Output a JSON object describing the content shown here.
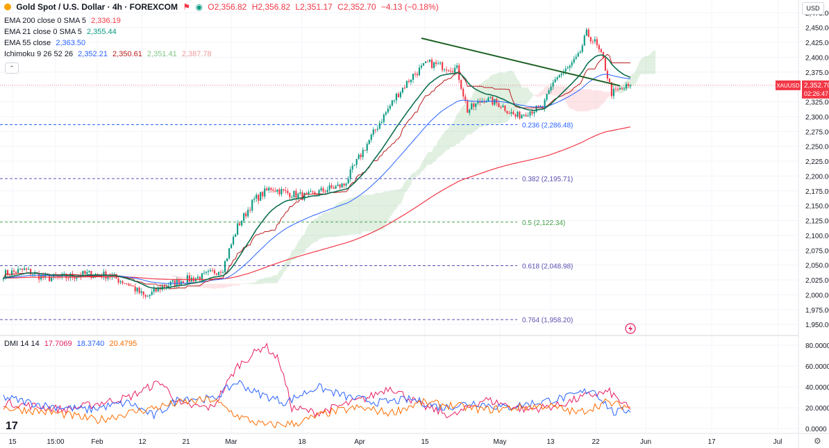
{
  "header": {
    "symbol_title": "Gold Spot / U.S. Dollar · 4h · FOREXCOM",
    "open": "O2,356.82",
    "high": "H2,356.82",
    "low": "L2,351.17",
    "close": "C2,352.70",
    "change": "−4.13 (−0.18%)",
    "currency": "USD"
  },
  "indicators": [
    {
      "label": "EMA 200 close 0 SMA 5",
      "values": [
        "2,336.19"
      ],
      "colors": [
        "#f23645"
      ]
    },
    {
      "label": "EMA 21 close 0 SMA 5",
      "values": [
        "2,355.44"
      ],
      "colors": [
        "#089981"
      ]
    },
    {
      "label": "EMA 55 close",
      "values": [
        "2,363.50"
      ],
      "colors": [
        "#2962ff"
      ]
    },
    {
      "label": "Ichimoku 9 26 52 26",
      "values": [
        "2,352.21",
        "2,350.61",
        "2,351.41",
        "2,387.78"
      ],
      "colors": [
        "#2962ff",
        "#b71c1c",
        "#43a047",
        "#f23645"
      ]
    }
  ],
  "dmi": {
    "label": "DMI 14 14",
    "values": [
      "17.7069",
      "18.3740",
      "20.4795"
    ],
    "colors": [
      "#e91e63",
      "#2962ff",
      "#ff6d00"
    ]
  },
  "price_tag": {
    "symbol": "XAUUSD",
    "price": "2,352.70",
    "countdown": "02:26:47"
  },
  "colors": {
    "up": "#089981",
    "down": "#f23645",
    "ema200": "#f23645",
    "ema21": "#089981",
    "ema55": "#2962ff",
    "trendline": "#1b5e20",
    "fib": "#5b4fb0",
    "fib_mid": "#43a047",
    "baseline": "#b71c1c",
    "conversion": "#2962ff"
  },
  "chart_data": [
    {
      "type": "candlestick",
      "title": "Gold Spot / U.S. Dollar · 4h · FOREXCOM",
      "xlabel": "",
      "ylabel": "",
      "ylim": [
        1935,
        2487
      ],
      "x_ticks": [
        "15",
        "15:00",
        "Feb",
        "12",
        "21",
        "Mar",
        "18",
        "Apr",
        "15",
        "May",
        "13",
        "22",
        "Jun",
        "17",
        "Jul"
      ],
      "y_ticks": [
        "2,475.00",
        "2,450.00",
        "2,425.00",
        "2,400.00",
        "2,375.00",
        "2,350.00",
        "2,325.00",
        "2,300.00",
        "2,275.00",
        "2,250.00",
        "2,225.00",
        "2,200.00",
        "2,175.00",
        "2,150.00",
        "2,125.00",
        "2,100.00",
        "2,075.00",
        "2,050.00",
        "2,025.00",
        "2,000.00",
        "1,975.00",
        "1,950.00"
      ],
      "last_price": 2352.7,
      "price_anchors": [
        {
          "i": 0,
          "v": 2035
        },
        {
          "i": 10,
          "v": 2042
        },
        {
          "i": 20,
          "v": 2028
        },
        {
          "i": 30,
          "v": 2030
        },
        {
          "i": 40,
          "v": 2035
        },
        {
          "i": 50,
          "v": 2033
        },
        {
          "i": 60,
          "v": 2018
        },
        {
          "i": 68,
          "v": 1995
        },
        {
          "i": 75,
          "v": 2012
        },
        {
          "i": 85,
          "v": 2024
        },
        {
          "i": 95,
          "v": 2030
        },
        {
          "i": 105,
          "v": 2045
        },
        {
          "i": 112,
          "v": 2115
        },
        {
          "i": 120,
          "v": 2160
        },
        {
          "i": 128,
          "v": 2180
        },
        {
          "i": 135,
          "v": 2172
        },
        {
          "i": 145,
          "v": 2165
        },
        {
          "i": 155,
          "v": 2178
        },
        {
          "i": 163,
          "v": 2185
        },
        {
          "i": 170,
          "v": 2230
        },
        {
          "i": 180,
          "v": 2290
        },
        {
          "i": 188,
          "v": 2335
        },
        {
          "i": 196,
          "v": 2370
        },
        {
          "i": 203,
          "v": 2390
        },
        {
          "i": 210,
          "v": 2385
        },
        {
          "i": 217,
          "v": 2380
        },
        {
          "i": 222,
          "v": 2310
        },
        {
          "i": 230,
          "v": 2330
        },
        {
          "i": 238,
          "v": 2320
        },
        {
          "i": 245,
          "v": 2300
        },
        {
          "i": 252,
          "v": 2310
        },
        {
          "i": 258,
          "v": 2315
        },
        {
          "i": 264,
          "v": 2365
        },
        {
          "i": 270,
          "v": 2380
        },
        {
          "i": 275,
          "v": 2400
        },
        {
          "i": 279,
          "v": 2440
        },
        {
          "i": 283,
          "v": 2425
        },
        {
          "i": 287,
          "v": 2395
        },
        {
          "i": 291,
          "v": 2340
        },
        {
          "i": 295,
          "v": 2345
        },
        {
          "i": 300,
          "v": 2352.7
        }
      ],
      "bar_count": 301,
      "trendline": {
        "from": {
          "i": 200,
          "v": 2432
        },
        "to": {
          "i": 295,
          "v": 2352
        }
      },
      "fib_levels": [
        {
          "label": "0.236 (2,286.48)",
          "value": 2286.48,
          "color": "#2962ff"
        },
        {
          "label": "0.382 (2,195.71)",
          "value": 2195.71,
          "color": "#5b4fb0"
        },
        {
          "label": "0.5 (2,122.34)",
          "value": 2122.34,
          "color": "#43a047"
        },
        {
          "label": "0.618 (2,048.98)",
          "value": 2048.98,
          "color": "#5b4fb0"
        },
        {
          "label": "0.764 (1,958.20)",
          "value": 1958.2,
          "color": "#5b4fb0"
        }
      ]
    },
    {
      "type": "line",
      "title": "DMI 14 14",
      "ylim": [
        -2,
        88
      ],
      "y_ticks": [
        "80.0000",
        "60.0000",
        "40.0000",
        "20.0000",
        "0.0000"
      ],
      "series": [
        {
          "color": "#e91e63",
          "anchors": [
            {
              "i": 0,
              "v": 25
            },
            {
              "i": 30,
              "v": 18
            },
            {
              "i": 60,
              "v": 30
            },
            {
              "i": 75,
              "v": 45
            },
            {
              "i": 85,
              "v": 22
            },
            {
              "i": 100,
              "v": 20
            },
            {
              "i": 112,
              "v": 60
            },
            {
              "i": 125,
              "v": 80
            },
            {
              "i": 132,
              "v": 65
            },
            {
              "i": 138,
              "v": 20
            },
            {
              "i": 150,
              "v": 15
            },
            {
              "i": 175,
              "v": 30
            },
            {
              "i": 185,
              "v": 40
            },
            {
              "i": 200,
              "v": 22
            },
            {
              "i": 215,
              "v": 12
            },
            {
              "i": 230,
              "v": 28
            },
            {
              "i": 250,
              "v": 18
            },
            {
              "i": 265,
              "v": 22
            },
            {
              "i": 280,
              "v": 32
            },
            {
              "i": 290,
              "v": 35
            },
            {
              "i": 300,
              "v": 17.7
            }
          ]
        },
        {
          "color": "#2962ff",
          "anchors": [
            {
              "i": 0,
              "v": 30
            },
            {
              "i": 20,
              "v": 22
            },
            {
              "i": 40,
              "v": 18
            },
            {
              "i": 60,
              "v": 25
            },
            {
              "i": 72,
              "v": 12
            },
            {
              "i": 85,
              "v": 30
            },
            {
              "i": 100,
              "v": 28
            },
            {
              "i": 112,
              "v": 45
            },
            {
              "i": 120,
              "v": 35
            },
            {
              "i": 135,
              "v": 25
            },
            {
              "i": 150,
              "v": 40
            },
            {
              "i": 165,
              "v": 30
            },
            {
              "i": 180,
              "v": 25
            },
            {
              "i": 195,
              "v": 28
            },
            {
              "i": 210,
              "v": 20
            },
            {
              "i": 225,
              "v": 25
            },
            {
              "i": 240,
              "v": 20
            },
            {
              "i": 255,
              "v": 25
            },
            {
              "i": 270,
              "v": 30
            },
            {
              "i": 282,
              "v": 38
            },
            {
              "i": 292,
              "v": 15
            },
            {
              "i": 300,
              "v": 18.4
            }
          ]
        },
        {
          "color": "#ff6d00",
          "anchors": [
            {
              "i": 0,
              "v": 20
            },
            {
              "i": 25,
              "v": 15
            },
            {
              "i": 45,
              "v": 8
            },
            {
              "i": 60,
              "v": 15
            },
            {
              "i": 72,
              "v": 20
            },
            {
              "i": 85,
              "v": 25
            },
            {
              "i": 100,
              "v": 28
            },
            {
              "i": 112,
              "v": 12
            },
            {
              "i": 125,
              "v": 3
            },
            {
              "i": 140,
              "v": 5
            },
            {
              "i": 155,
              "v": 15
            },
            {
              "i": 170,
              "v": 20
            },
            {
              "i": 185,
              "v": 15
            },
            {
              "i": 200,
              "v": 25
            },
            {
              "i": 215,
              "v": 22
            },
            {
              "i": 230,
              "v": 18
            },
            {
              "i": 245,
              "v": 20
            },
            {
              "i": 260,
              "v": 22
            },
            {
              "i": 275,
              "v": 15
            },
            {
              "i": 288,
              "v": 25
            },
            {
              "i": 300,
              "v": 20.5
            }
          ]
        }
      ]
    }
  ]
}
